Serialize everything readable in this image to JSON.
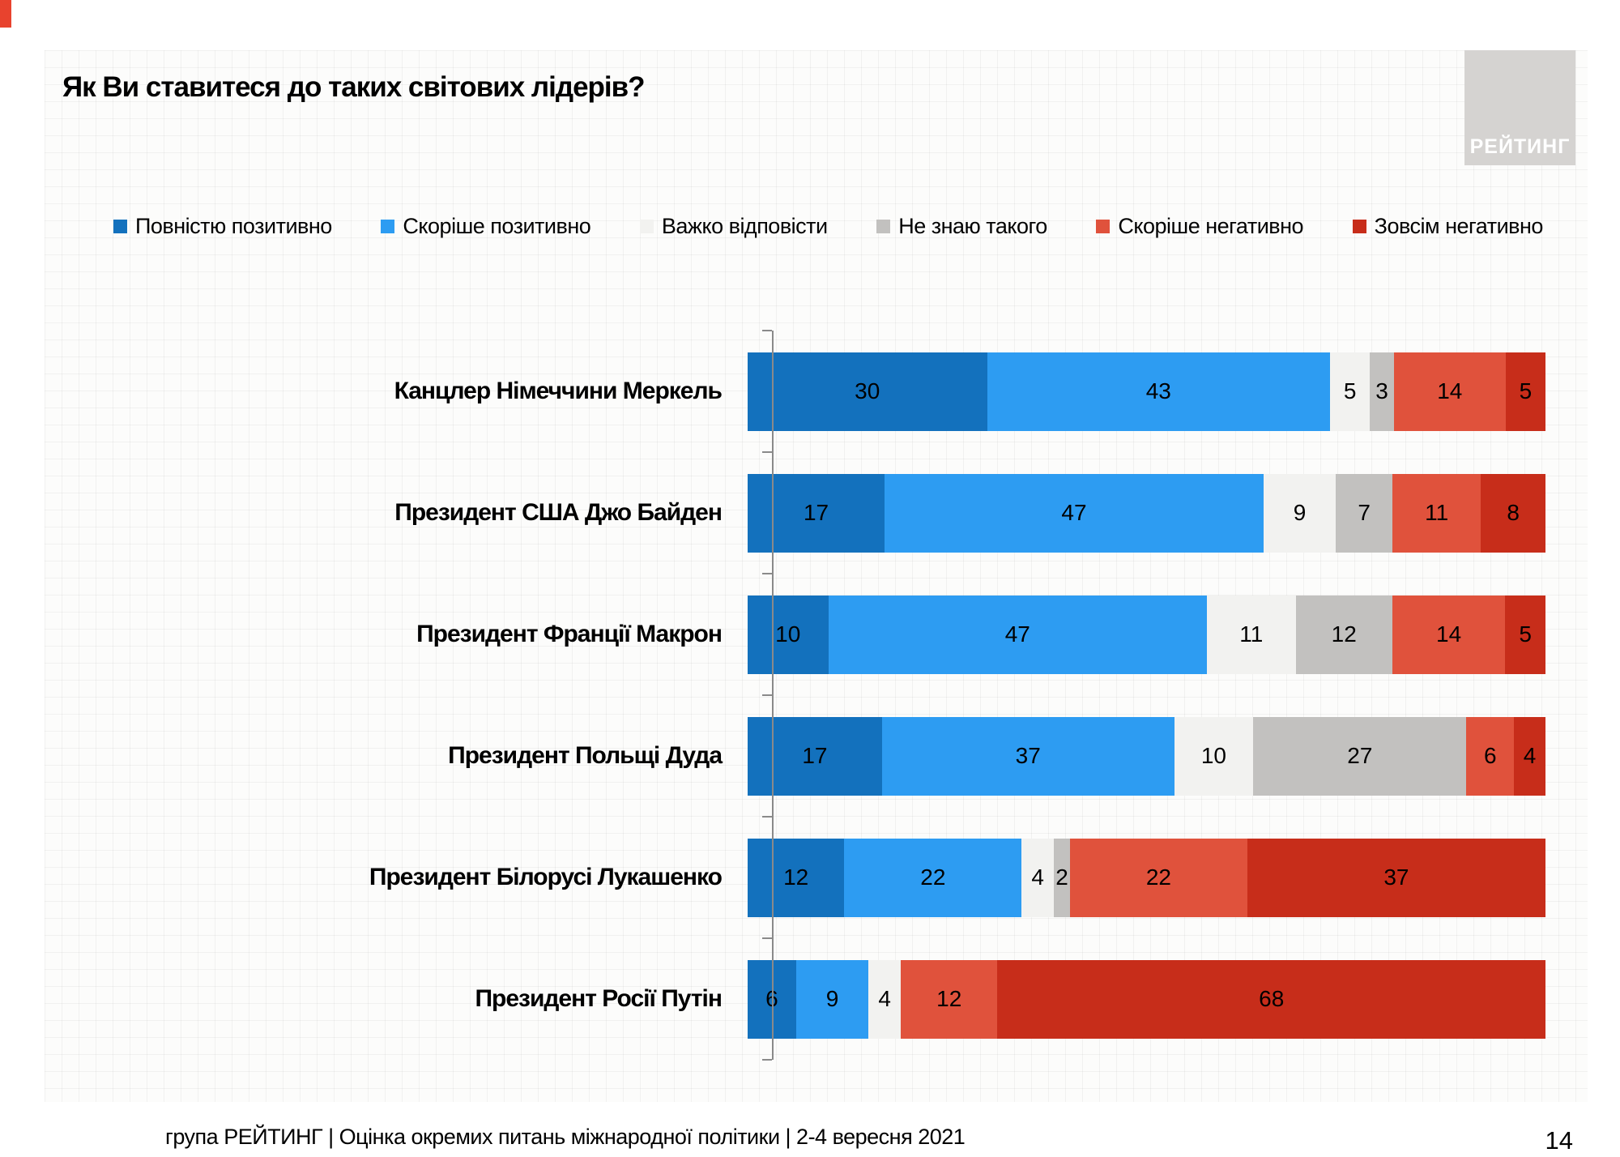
{
  "header": {
    "title": "Як Ви ставитеся до таких світових лідерів?"
  },
  "logo": {
    "text": "РЕЙТИНГ",
    "background": "#d5d3d1"
  },
  "footer": {
    "text": "група РЕЙТИНГ | Оцінка окремих питань міжнародної політики | 2-4 вересня 2021"
  },
  "page": {
    "number": "14"
  },
  "chart_data": {
    "type": "bar",
    "stacked": true,
    "orientation": "horizontal",
    "title": "Як Ви ставитеся до таких світових лідерів?",
    "xlim": [
      0,
      100
    ],
    "value_labels": true,
    "legend_position": "top",
    "axis_color": "#8a8a8a",
    "categories": [
      "Канцлер Німеччини Меркель",
      "Президент США Джо Байден",
      "Президент Франції Макрон",
      "Президент Польщі Дуда",
      "Президент Білорусі Лукашенко",
      "Президент Росії Путін"
    ],
    "series": [
      {
        "name": "Повністю позитивно",
        "color": "#1371bd",
        "values": [
          30,
          17,
          10,
          17,
          12,
          6
        ]
      },
      {
        "name": "Скоріше позитивно",
        "color": "#2d9cf2",
        "values": [
          43,
          47,
          47,
          37,
          22,
          9
        ]
      },
      {
        "name": "Важко відповісти",
        "color": "#f2f2f0",
        "values": [
          5,
          9,
          11,
          10,
          4,
          4
        ]
      },
      {
        "name": "Не знаю такого",
        "color": "#c2c1bf",
        "values": [
          3,
          7,
          12,
          27,
          2,
          0
        ]
      },
      {
        "name": "Скоріше негативно",
        "color": "#e0523c",
        "values": [
          14,
          11,
          14,
          6,
          22,
          12
        ]
      },
      {
        "name": "Зовсім негативно",
        "color": "#c72d1a",
        "values": [
          5,
          8,
          5,
          4,
          37,
          68
        ]
      }
    ]
  }
}
